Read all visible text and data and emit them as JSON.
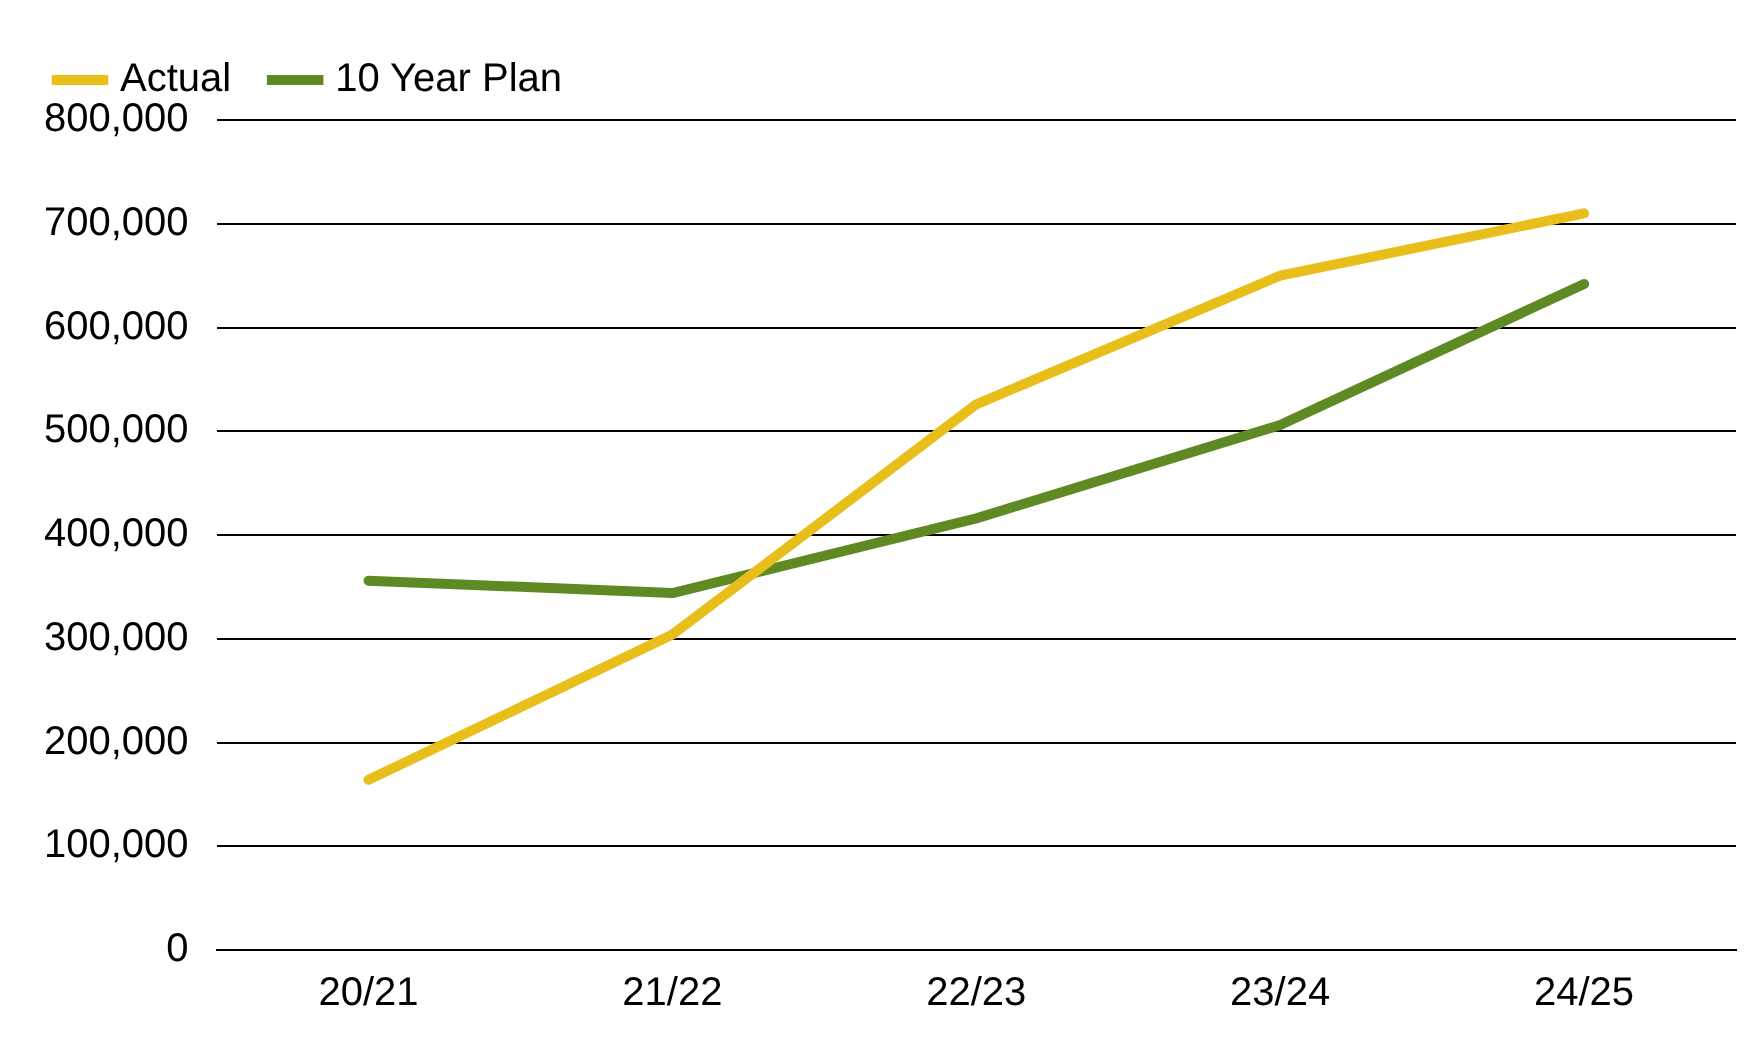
{
  "chart_data": {
    "type": "line",
    "categories": [
      "20/21",
      "21/22",
      "22/23",
      "23/24",
      "24/25"
    ],
    "series": [
      {
        "name": "Actual",
        "color": "#e8bf1a",
        "values": [
          164000,
          304000,
          526000,
          650000,
          710000
        ]
      },
      {
        "name": "10 Year Plan",
        "color": "#5f8a23",
        "values": [
          356000,
          344000,
          416000,
          506000,
          642000
        ]
      }
    ],
    "ylim": [
      0,
      800000
    ],
    "yticks": [
      {
        "value": 0,
        "label": "0"
      },
      {
        "value": 100000,
        "label": "100,000"
      },
      {
        "value": 200000,
        "label": "200,000"
      },
      {
        "value": 300000,
        "label": "300,000"
      },
      {
        "value": 400000,
        "label": "400,000"
      },
      {
        "value": 500000,
        "label": "500,000"
      },
      {
        "value": 600000,
        "label": "600,000"
      },
      {
        "value": 700000,
        "label": "700,000"
      },
      {
        "value": 800000,
        "label": "800,000"
      }
    ],
    "grid": "y",
    "legend": "top left",
    "marker": "none",
    "line_style": "solid"
  }
}
